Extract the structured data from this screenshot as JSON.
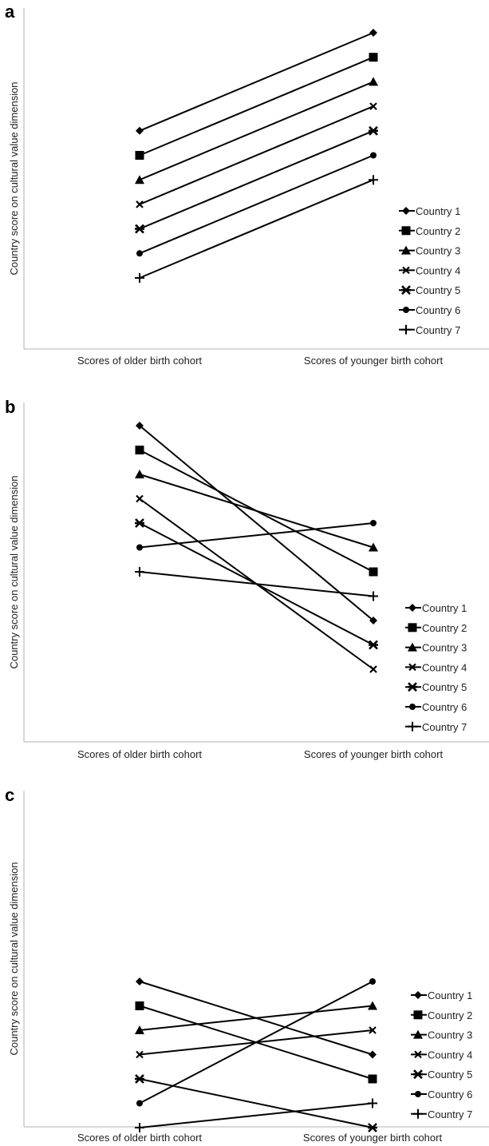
{
  "chart_data": [
    {
      "panel": "a",
      "type": "line",
      "categories": [
        "Scores of older birth cohort",
        "Scores of younger birth cohort"
      ],
      "ylabel": "Country score on cultural value dimension",
      "series": [
        {
          "name": "Country 1",
          "marker": "diamond",
          "values": [
            7,
            11
          ]
        },
        {
          "name": "Country 2",
          "marker": "square",
          "values": [
            6,
            10
          ]
        },
        {
          "name": "Country 3",
          "marker": "triangle",
          "values": [
            5,
            9
          ]
        },
        {
          "name": "Country 4",
          "marker": "x",
          "values": [
            4,
            8
          ]
        },
        {
          "name": "Country 5",
          "marker": "star",
          "values": [
            3,
            7
          ]
        },
        {
          "name": "Country 6",
          "marker": "circle",
          "values": [
            2,
            6
          ]
        },
        {
          "name": "Country 7",
          "marker": "plus",
          "values": [
            1,
            5
          ]
        }
      ],
      "ylim": [
        -3,
        12
      ],
      "legend": "right"
    },
    {
      "panel": "b",
      "type": "line",
      "categories": [
        "Scores of older birth cohort",
        "Scores of younger birth cohort"
      ],
      "ylabel": "Country score on cultural value dimension",
      "series": [
        {
          "name": "Country 1",
          "marker": "diamond",
          "values": [
            11,
            3
          ]
        },
        {
          "name": "Country 2",
          "marker": "square",
          "values": [
            10,
            5
          ]
        },
        {
          "name": "Country 3",
          "marker": "triangle",
          "values": [
            9,
            6
          ]
        },
        {
          "name": "Country 4",
          "marker": "x",
          "values": [
            8,
            1
          ]
        },
        {
          "name": "Country 5",
          "marker": "star",
          "values": [
            7,
            2
          ]
        },
        {
          "name": "Country 6",
          "marker": "circle",
          "values": [
            6,
            7
          ]
        },
        {
          "name": "Country 7",
          "marker": "plus",
          "values": [
            5,
            4
          ]
        }
      ],
      "ylim": [
        -3,
        12
      ],
      "legend": "right"
    },
    {
      "panel": "c",
      "type": "line",
      "categories": [
        "Scores of older birth cohort",
        "Scores of younger birth cohort"
      ],
      "ylabel": "Country score on cultural value dimension",
      "series": [
        {
          "name": "Country 1",
          "marker": "diamond",
          "values": [
            7,
            4
          ]
        },
        {
          "name": "Country 2",
          "marker": "square",
          "values": [
            6,
            3
          ]
        },
        {
          "name": "Country 3",
          "marker": "triangle",
          "values": [
            5,
            6
          ]
        },
        {
          "name": "Country 4",
          "marker": "x",
          "values": [
            4,
            5
          ]
        },
        {
          "name": "Country 5",
          "marker": "star",
          "values": [
            3,
            1
          ]
        },
        {
          "name": "Country 6",
          "marker": "circle",
          "values": [
            2,
            7
          ]
        },
        {
          "name": "Country 7",
          "marker": "plus",
          "values": [
            1,
            2
          ]
        }
      ],
      "ylim": [
        -3,
        12
      ],
      "legend": "right"
    }
  ],
  "colors": {
    "line": "#000000",
    "axis": "#b0b0b0"
  }
}
